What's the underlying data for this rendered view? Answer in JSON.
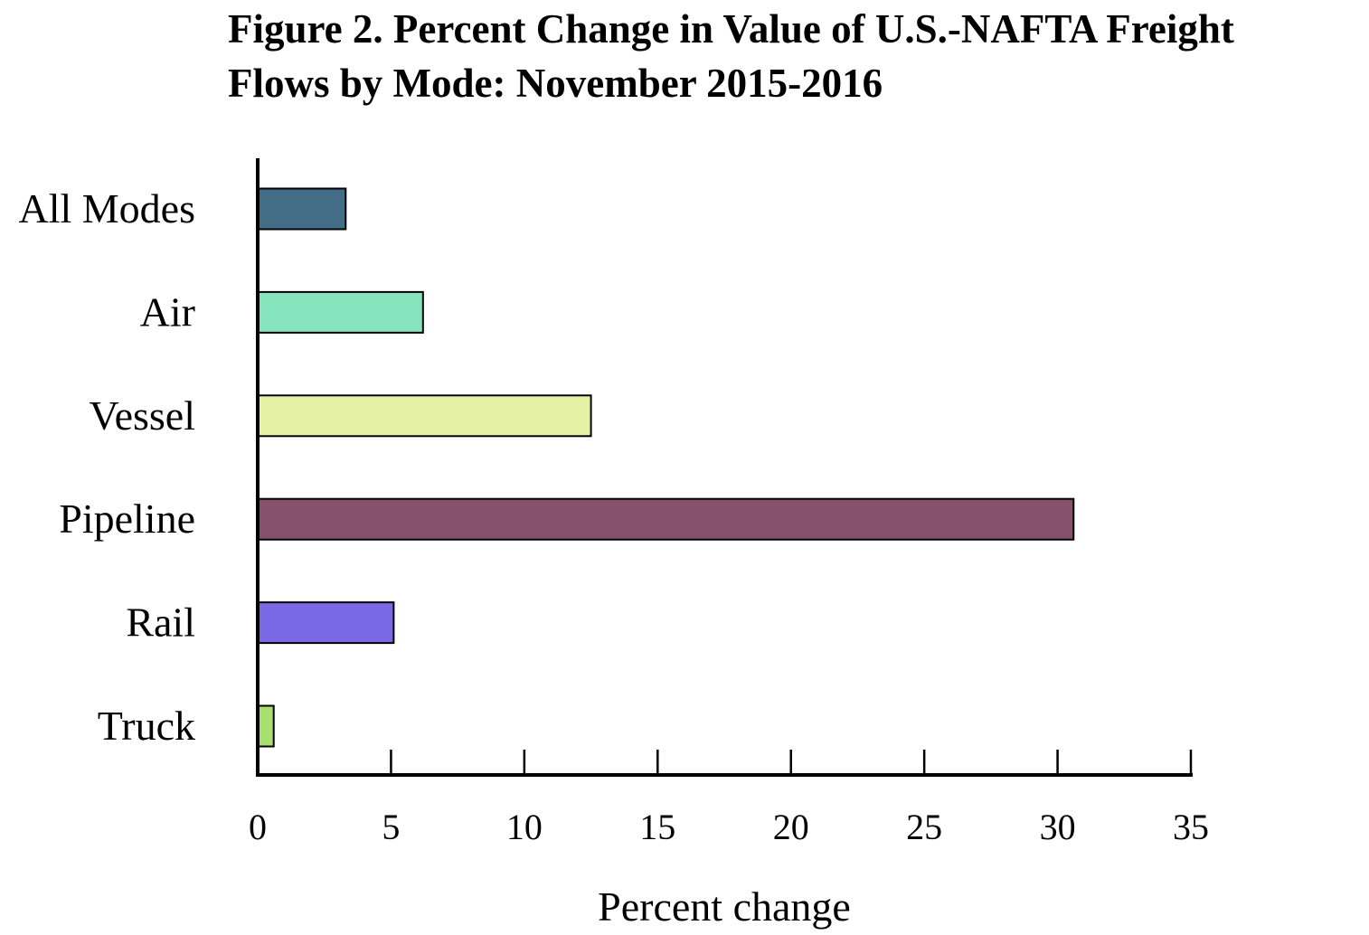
{
  "chart_data": {
    "type": "bar",
    "orientation": "horizontal",
    "title_lines": [
      "Figure 2. Percent Change in Value of U.S.-NAFTA Freight",
      "Flows by Mode: November 2015-2016"
    ],
    "categories": [
      "All Modes",
      "Air",
      "Vessel",
      "Pipeline",
      "Rail",
      "Truck"
    ],
    "values": [
      3.3,
      6.2,
      12.5,
      30.6,
      5.1,
      0.6
    ],
    "colors": [
      "#436d87",
      "#85e4bc",
      "#e5f2a6",
      "#87506c",
      "#7b68e6",
      "#a7e071"
    ],
    "xlabel": "Percent change",
    "ylabel": "",
    "xlim": [
      0,
      35
    ],
    "xticks": [
      "0",
      "5",
      "10",
      "15",
      "20",
      "25",
      "30",
      "35"
    ],
    "grid": false,
    "legend": "none"
  }
}
